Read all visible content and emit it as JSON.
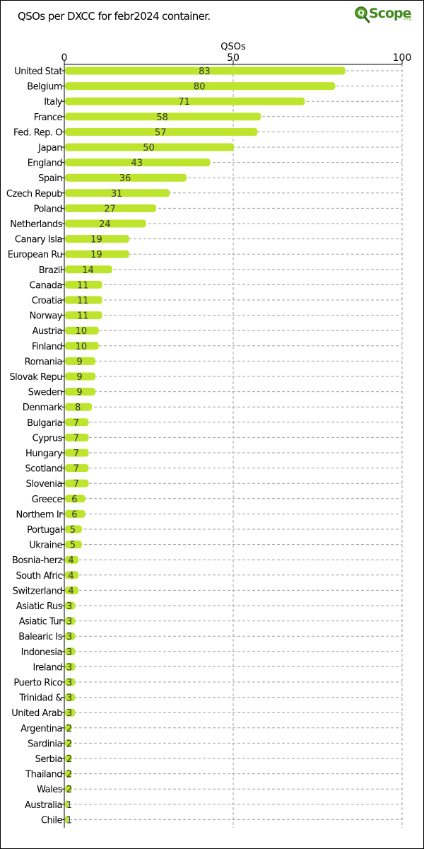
{
  "title": "QSOs per DXCC for febr2024 container.",
  "logo": {
    "word": "Scope",
    "domain": ".org",
    "icon": "magnifier-q-icon"
  },
  "colors": {
    "bar": "#bde52e",
    "grid": "#a0a0a0",
    "axis": "#000000",
    "logo": "#3f8a1e"
  },
  "chart_data": {
    "type": "bar",
    "orientation": "horizontal",
    "xlabel": "QSOs",
    "xlim": [
      0,
      100
    ],
    "xticks": [
      0,
      50,
      100
    ],
    "grid": true,
    "categories": [
      "United Stat",
      "Belgium",
      "Italy",
      "France",
      "Fed. Rep. O",
      "Japan",
      "England",
      "Spain",
      "Czech Repub",
      "Poland",
      "Netherlands",
      "Canary Isla",
      "European Ru",
      "Brazil",
      "Canada",
      "Croatia",
      "Norway",
      "Austria",
      "Finland",
      "Romania",
      "Slovak Repu",
      "Sweden",
      "Denmark",
      "Bulgaria",
      "Cyprus",
      "Hungary",
      "Scotland",
      "Slovenia",
      "Greece",
      "Northern Ir",
      "Portugal",
      "Ukraine",
      "Bosnia-herz",
      "South Afric",
      "Switzerland",
      "Asiatic Rus",
      "Asiatic Tur",
      "Balearic Is",
      "Indonesia",
      "Ireland",
      "Puerto Rico",
      "Trinidad &",
      "United Arab",
      "Argentina",
      "Sardinia",
      "Serbia",
      "Thailand",
      "Wales",
      "Australia",
      "Chile"
    ],
    "values": [
      83,
      80,
      71,
      58,
      57,
      50,
      43,
      36,
      31,
      27,
      24,
      19,
      19,
      14,
      11,
      11,
      11,
      10,
      10,
      9,
      9,
      9,
      8,
      7,
      7,
      7,
      7,
      7,
      6,
      6,
      5,
      5,
      4,
      4,
      4,
      3,
      3,
      3,
      3,
      3,
      3,
      3,
      3,
      2,
      2,
      2,
      2,
      2,
      1,
      1
    ]
  }
}
